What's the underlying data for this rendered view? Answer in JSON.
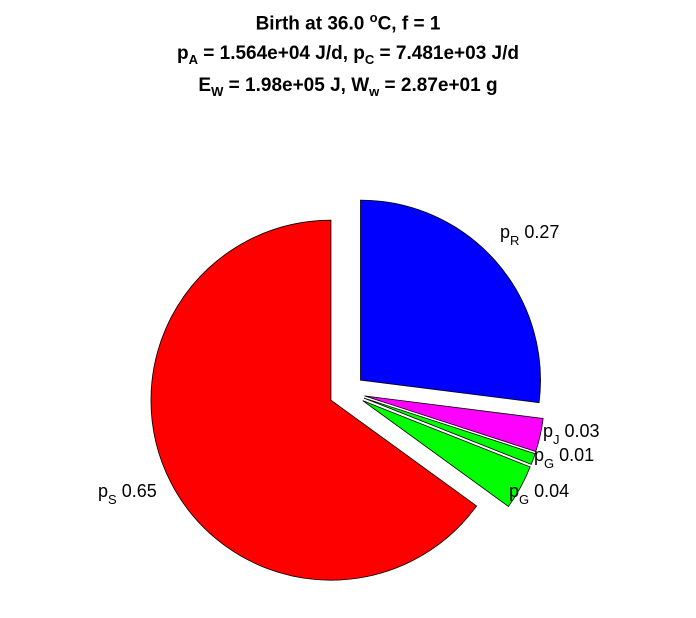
{
  "chart_data": {
    "type": "pie",
    "title_lines": [
      [
        "Birth at 36.0 ",
        {
          "sup": "o"
        },
        "C, f = 1"
      ],
      [
        "p",
        {
          "sub": "A"
        },
        " = 1.564e+04 J/d, p",
        {
          "sub": "C"
        },
        " = 7.481e+03 J/d"
      ],
      [
        "E",
        {
          "sub": "W"
        },
        " = 1.98e+05 J, W",
        {
          "sub": "w"
        },
        " = 2.87e+01 g"
      ]
    ],
    "slices": [
      {
        "label_main": "p",
        "label_sub": "R",
        "value_text": "0.27",
        "value": 0.27,
        "color": "#0000FF"
      },
      {
        "label_main": "p",
        "label_sub": "J",
        "value_text": "0.03",
        "value": 0.03,
        "color": "#FF00FF"
      },
      {
        "label_main": "p",
        "label_sub": "G",
        "value_text": "0.01",
        "value": 0.01,
        "color": "#00FF00"
      },
      {
        "label_main": "p",
        "label_sub": "G",
        "value_text": "0.04",
        "value": 0.04,
        "color": "#00FF00"
      },
      {
        "label_main": "p",
        "label_sub": "S",
        "value_text": "0.65",
        "value": 0.65,
        "color": "#FF0000"
      }
    ]
  }
}
